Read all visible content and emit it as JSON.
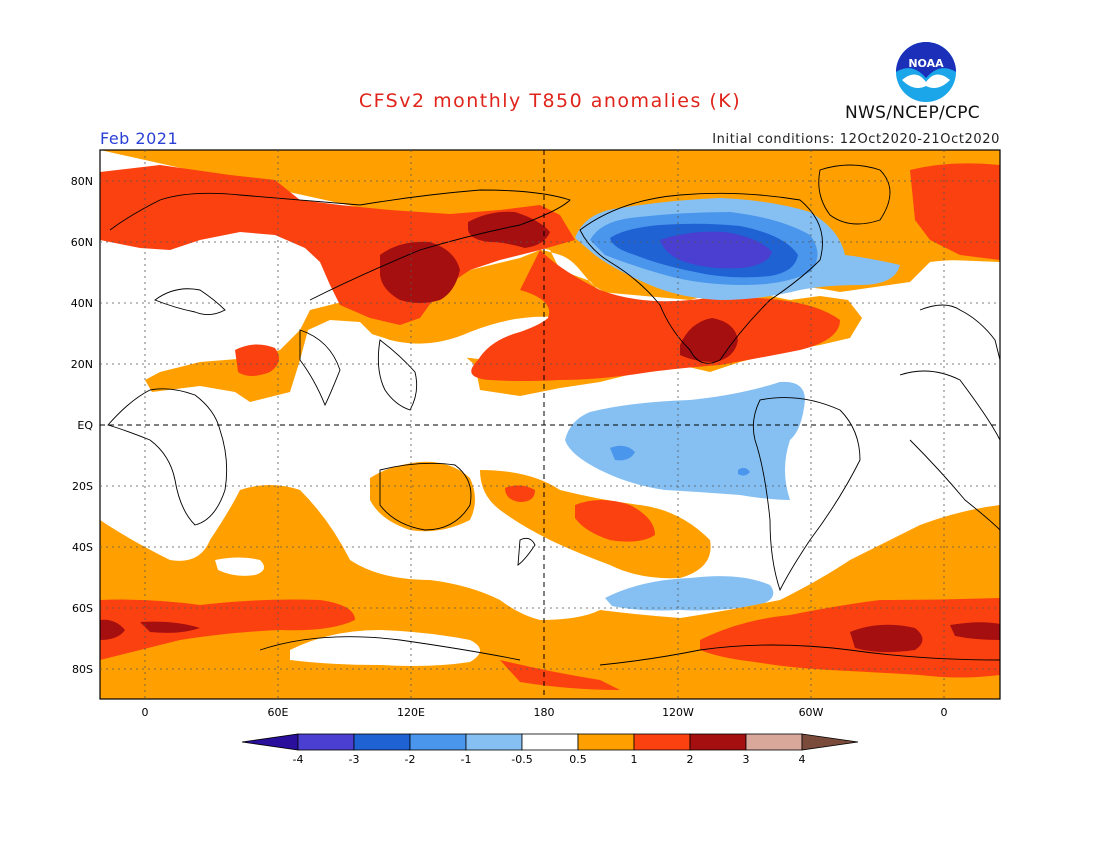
{
  "header": {
    "title": "CFSv2 monthly T850 anomalies (K)",
    "month": "Feb 2021",
    "initial_conditions": "Initial conditions: 12Oct2020-21Oct2020",
    "org": "NWS/NCEP/CPC",
    "logo_text": "NOAA"
  },
  "map": {
    "lat_labels": [
      "80N",
      "60N",
      "40N",
      "20N",
      "EQ",
      "20S",
      "40S",
      "60S",
      "80S"
    ],
    "lon_labels": [
      "0",
      "60E",
      "120E",
      "180",
      "120W",
      "60W",
      "0"
    ]
  },
  "colorbar": {
    "labels": [
      "-4",
      "-3",
      "-2",
      "-1",
      "-0.5",
      "0.5",
      "1",
      "2",
      "3",
      "4"
    ],
    "colors": [
      "#2a0f9c",
      "#4a3fd0",
      "#1f62d4",
      "#4a96ec",
      "#86c0f2",
      "#ffffff",
      "#ffa000",
      "#fc4110",
      "#a50f0f",
      "#d9a89b",
      "#7a4a3b"
    ]
  },
  "legend_colors": {
    "neg_strong": "#4a3fd0",
    "neg_med": "#1f62d4",
    "neg_light": "#4a96ec",
    "neg_weak": "#86c0f2",
    "pos_weak": "#ffa000",
    "pos_med": "#fc4110",
    "pos_strong": "#a50f0f"
  }
}
